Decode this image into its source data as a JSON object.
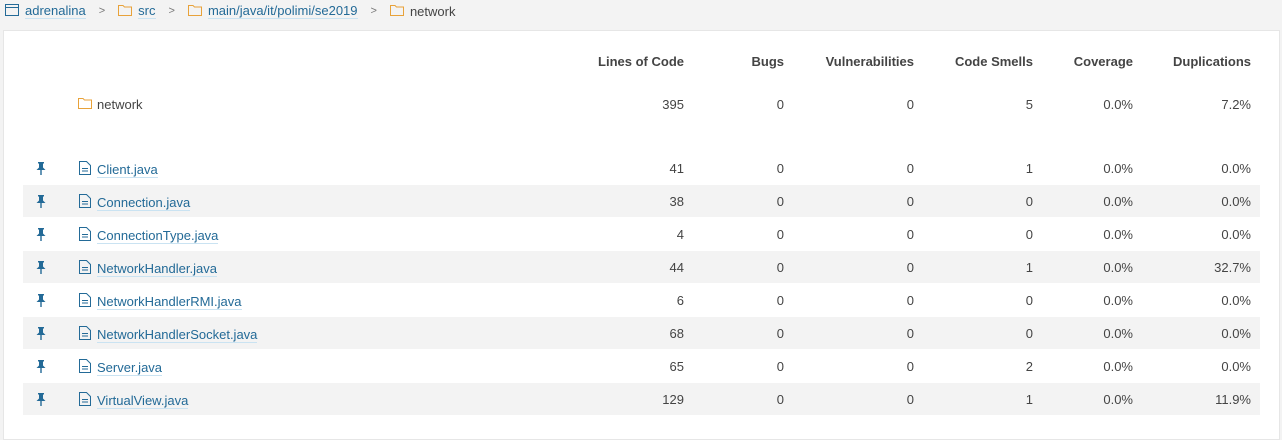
{
  "breadcrumb": [
    {
      "label": "adrenalina",
      "icon": "project-icon",
      "link": true
    },
    {
      "label": "src",
      "icon": "folder-icon",
      "link": true
    },
    {
      "label": "main/java/it/polimi/se2019",
      "icon": "folder-icon",
      "link": true
    },
    {
      "label": "network",
      "icon": "folder-icon",
      "link": false
    }
  ],
  "breadcrumb_separator": ">",
  "columns": [
    "Lines of Code",
    "Bugs",
    "Vulnerabilities",
    "Code Smells",
    "Coverage",
    "Duplications"
  ],
  "base": {
    "name": "network",
    "icon": "folder-icon",
    "values": [
      "395",
      "0",
      "0",
      "5",
      "0.0%",
      "7.2%"
    ]
  },
  "files": [
    {
      "name": "Client.java",
      "values": [
        "41",
        "0",
        "0",
        "1",
        "0.0%",
        "0.0%"
      ]
    },
    {
      "name": "Connection.java",
      "values": [
        "38",
        "0",
        "0",
        "0",
        "0.0%",
        "0.0%"
      ]
    },
    {
      "name": "ConnectionType.java",
      "values": [
        "4",
        "0",
        "0",
        "0",
        "0.0%",
        "0.0%"
      ]
    },
    {
      "name": "NetworkHandler.java",
      "values": [
        "44",
        "0",
        "0",
        "1",
        "0.0%",
        "32.7%"
      ]
    },
    {
      "name": "NetworkHandlerRMI.java",
      "values": [
        "6",
        "0",
        "0",
        "0",
        "0.0%",
        "0.0%"
      ]
    },
    {
      "name": "NetworkHandlerSocket.java",
      "values": [
        "68",
        "0",
        "0",
        "0",
        "0.0%",
        "0.0%"
      ]
    },
    {
      "name": "Server.java",
      "values": [
        "65",
        "0",
        "0",
        "2",
        "0.0%",
        "0.0%"
      ]
    },
    {
      "name": "VirtualView.java",
      "values": [
        "129",
        "0",
        "0",
        "1",
        "0.0%",
        "11.9%"
      ]
    }
  ],
  "colors": {
    "link": "#236a97",
    "folder": "#e8a23a",
    "file": "#236a97",
    "pin": "#236a97",
    "stripe": "#f3f3f3"
  }
}
